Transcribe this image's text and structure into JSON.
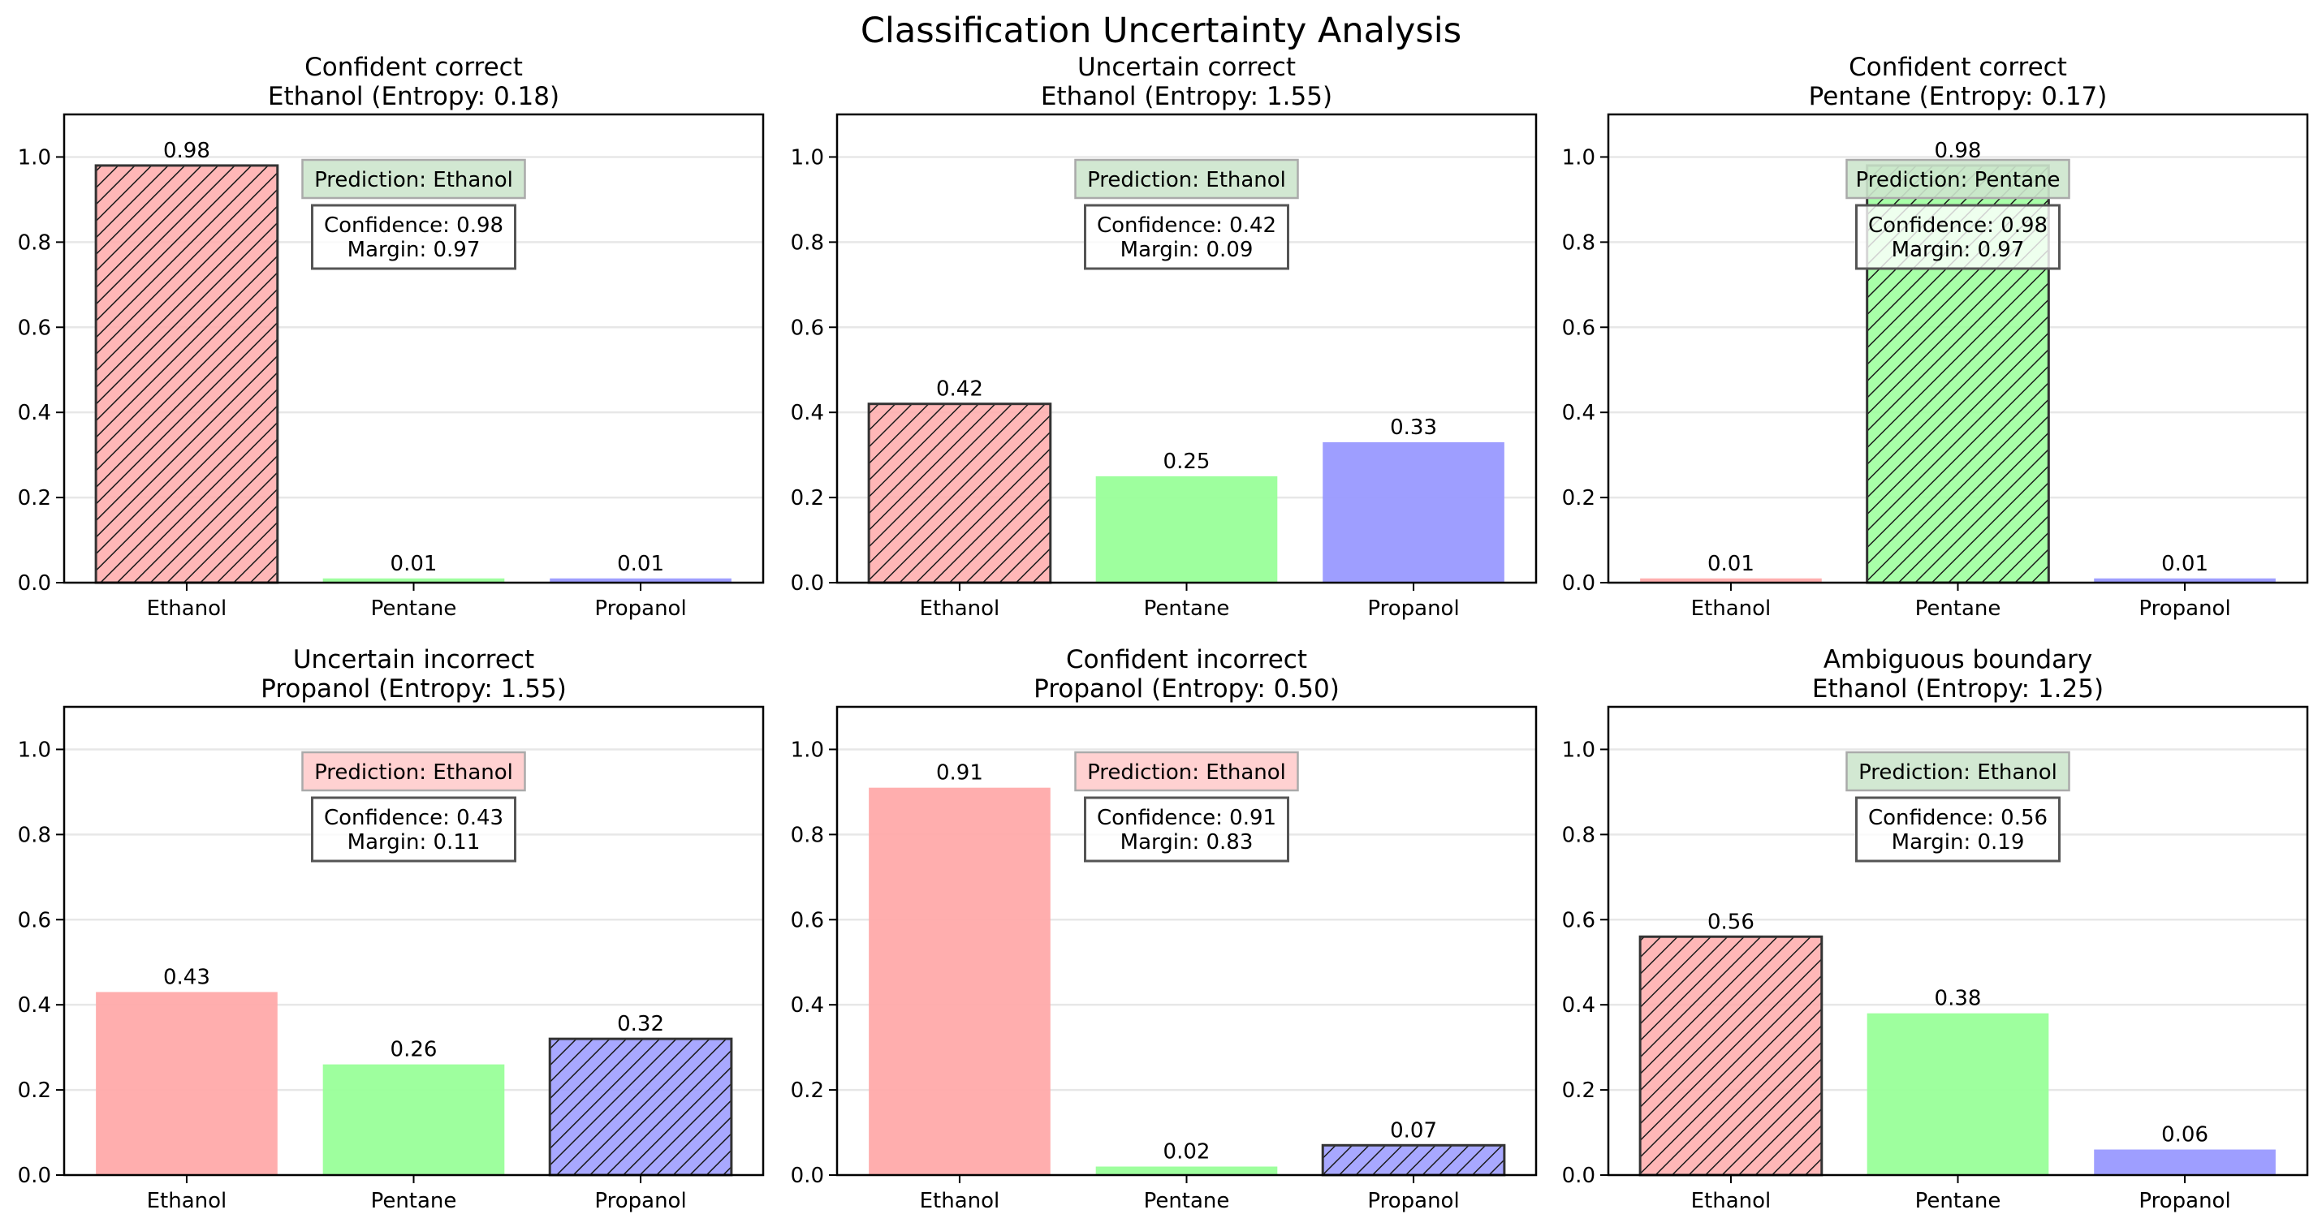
{
  "chart_data": {
    "type": "bar",
    "title": "Classification Uncertainty Analysis",
    "layout": "2 rows x 3 columns",
    "categories": [
      "Ethanol",
      "Pentane",
      "Propanol"
    ],
    "category_colors": {
      "Ethanol": "#ffaaaa",
      "Pentane": "#99ff99",
      "Propanol": "#9999ff"
    },
    "status_colors": {
      "correct": "#cde5cd",
      "incorrect": "#ffcccc"
    },
    "ylim": [
      0,
      1.1
    ],
    "yticks": [
      "0.0",
      "0.2",
      "0.4",
      "0.6",
      "0.8",
      "1.0"
    ],
    "ytick_values": [
      0,
      0.2,
      0.4,
      0.6,
      0.8,
      1.0
    ],
    "grid": "y",
    "panels": [
      {
        "case": "Confident correct",
        "true_class": "Ethanol",
        "entropy": "0.18",
        "title_line2": "Ethanol (Entropy: 0.18)",
        "values": [
          0.98,
          0.01,
          0.01
        ],
        "value_labels": [
          "0.98",
          "0.01",
          "0.01"
        ],
        "hatched_index": 0,
        "prediction": "Prediction: Ethanol",
        "prediction_correct": true,
        "confidence_label": "Confidence: 0.98",
        "margin_label": "Margin: 0.97"
      },
      {
        "case": "Uncertain correct",
        "true_class": "Ethanol",
        "entropy": "1.55",
        "title_line2": "Ethanol (Entropy: 1.55)",
        "values": [
          0.42,
          0.25,
          0.33
        ],
        "value_labels": [
          "0.42",
          "0.25",
          "0.33"
        ],
        "hatched_index": 0,
        "prediction": "Prediction: Ethanol",
        "prediction_correct": true,
        "confidence_label": "Confidence: 0.42",
        "margin_label": "Margin: 0.09"
      },
      {
        "case": "Confident correct",
        "true_class": "Pentane",
        "entropy": "0.17",
        "title_line2": "Pentane (Entropy: 0.17)",
        "values": [
          0.01,
          0.98,
          0.01
        ],
        "value_labels": [
          "0.01",
          "0.98",
          "0.01"
        ],
        "hatched_index": 1,
        "prediction": "Prediction: Pentane",
        "prediction_correct": true,
        "confidence_label": "Confidence: 0.98",
        "margin_label": "Margin: 0.97"
      },
      {
        "case": "Uncertain incorrect",
        "true_class": "Propanol",
        "entropy": "1.55",
        "title_line2": "Propanol (Entropy: 1.55)",
        "values": [
          0.43,
          0.26,
          0.32
        ],
        "value_labels": [
          "0.43",
          "0.26",
          "0.32"
        ],
        "hatched_index": 2,
        "prediction": "Prediction: Ethanol",
        "prediction_correct": false,
        "confidence_label": "Confidence: 0.43",
        "margin_label": "Margin: 0.11"
      },
      {
        "case": "Confident incorrect",
        "true_class": "Propanol",
        "entropy": "0.50",
        "title_line2": "Propanol (Entropy: 0.50)",
        "values": [
          0.91,
          0.02,
          0.07
        ],
        "value_labels": [
          "0.91",
          "0.02",
          "0.07"
        ],
        "hatched_index": 2,
        "prediction": "Prediction: Ethanol",
        "prediction_correct": false,
        "confidence_label": "Confidence: 0.91",
        "margin_label": "Margin: 0.83"
      },
      {
        "case": "Ambiguous boundary",
        "true_class": "Ethanol",
        "entropy": "1.25",
        "title_line2": "Ethanol (Entropy: 1.25)",
        "values": [
          0.56,
          0.38,
          0.06
        ],
        "value_labels": [
          "0.56",
          "0.38",
          "0.06"
        ],
        "hatched_index": 0,
        "prediction": "Prediction: Ethanol",
        "prediction_correct": true,
        "confidence_label": "Confidence: 0.56",
        "margin_label": "Margin: 0.19"
      }
    ]
  }
}
